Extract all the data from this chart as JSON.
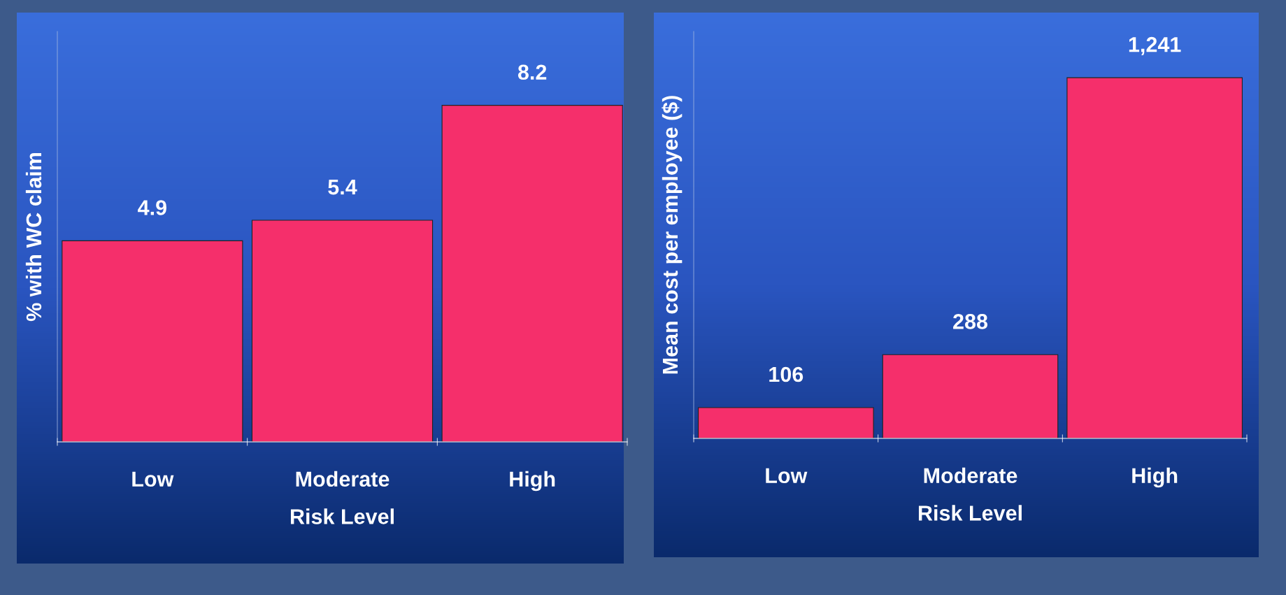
{
  "chart_data": [
    {
      "type": "bar",
      "categories": [
        "Low",
        "Moderate",
        "High"
      ],
      "values": [
        4.9,
        5.4,
        8.2
      ],
      "color": "#f52f6b",
      "xlabel": "Risk Level",
      "ylabel": "% with WC claim",
      "ylim": [
        0,
        10
      ],
      "data_labels": true,
      "grid": false,
      "legend": false,
      "tick_labels": "x"
    },
    {
      "type": "bar",
      "categories": [
        "Low",
        "Moderate",
        "High"
      ],
      "values": [
        106,
        288,
        1241
      ],
      "value_labels": [
        "106",
        "288",
        "1,241"
      ],
      "color": "#f52f6b",
      "xlabel": "Risk Level",
      "ylabel": "Mean cost per employee ($)",
      "ylim": [
        0,
        1400
      ],
      "grid": false,
      "legend": false,
      "tick_labels": "x"
    }
  ]
}
